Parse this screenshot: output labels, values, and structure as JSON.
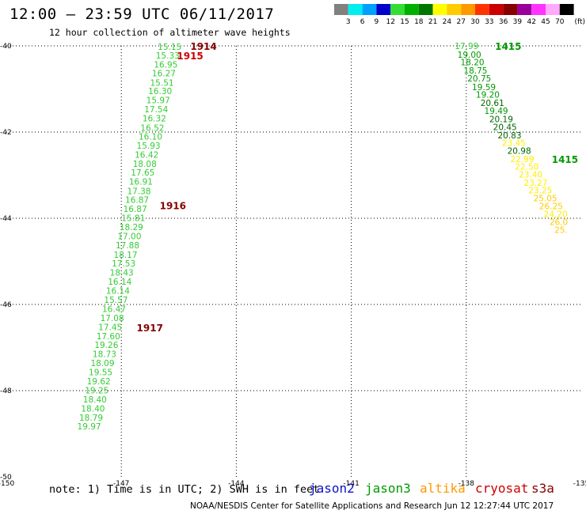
{
  "header": {
    "title": "12:00 – 23:59 UTC 06/11/2017",
    "subtitle": "12 hour collection of altimeter wave heights"
  },
  "colorbar": {
    "unit": "(ft)",
    "steps": [
      {
        "label": "3",
        "color": "#808080"
      },
      {
        "label": "6",
        "color": "#00eeee"
      },
      {
        "label": "9",
        "color": "#00a0ff"
      },
      {
        "label": "12",
        "color": "#0000cc"
      },
      {
        "label": "15",
        "color": "#33dd33"
      },
      {
        "label": "18",
        "color": "#00b000"
      },
      {
        "label": "21",
        "color": "#007700"
      },
      {
        "label": "24",
        "color": "#ffff00"
      },
      {
        "label": "27",
        "color": "#ffcc00"
      },
      {
        "label": "30",
        "color": "#ff9900"
      },
      {
        "label": "33",
        "color": "#ff3300"
      },
      {
        "label": "36",
        "color": "#cc0000"
      },
      {
        "label": "39",
        "color": "#880000"
      },
      {
        "label": "42",
        "color": "#990099"
      },
      {
        "label": "45",
        "color": "#ff33ff"
      },
      {
        "label": "70",
        "color": "#ffaaff"
      },
      {
        "label": "",
        "color": "#000000"
      }
    ]
  },
  "map": {
    "lon_range": [
      -150,
      -135
    ],
    "lat_range": [
      -50,
      -40
    ],
    "lon_ticks": [
      "-150",
      "-147",
      "-144",
      "-141",
      "-138",
      "-135"
    ],
    "lat_ticks": [
      "-40",
      "-42",
      "-44",
      "-46",
      "-48",
      "-50"
    ],
    "grid": "dotted"
  },
  "tracks": [
    {
      "name": "western-track",
      "points": [
        {
          "lat": -40.02,
          "lon": -146.05,
          "value": "15.15",
          "color": "#33cc33"
        },
        {
          "lat": -40.22,
          "lon": -146.1,
          "value": "15.33",
          "color": "#33cc33"
        },
        {
          "lat": -40.43,
          "lon": -146.15,
          "value": "16.95",
          "color": "#33cc33"
        },
        {
          "lat": -40.63,
          "lon": -146.2,
          "value": "16.27",
          "color": "#33cc33"
        },
        {
          "lat": -40.85,
          "lon": -146.25,
          "value": "15.51",
          "color": "#33cc33"
        },
        {
          "lat": -41.05,
          "lon": -146.3,
          "value": "16.30",
          "color": "#33cc33"
        },
        {
          "lat": -41.26,
          "lon": -146.35,
          "value": "15.97",
          "color": "#33cc33"
        },
        {
          "lat": -41.47,
          "lon": -146.4,
          "value": "17.54",
          "color": "#33cc33"
        },
        {
          "lat": -41.68,
          "lon": -146.45,
          "value": "16.32",
          "color": "#33cc33"
        },
        {
          "lat": -41.9,
          "lon": -146.5,
          "value": "16.52",
          "color": "#33cc33"
        },
        {
          "lat": -42.1,
          "lon": -146.55,
          "value": "16.10",
          "color": "#33cc33"
        },
        {
          "lat": -42.31,
          "lon": -146.6,
          "value": "15.93",
          "color": "#33cc33"
        },
        {
          "lat": -42.52,
          "lon": -146.65,
          "value": "16.42",
          "color": "#33cc33"
        },
        {
          "lat": -42.73,
          "lon": -146.7,
          "value": "18.08",
          "color": "#33cc33"
        },
        {
          "lat": -42.94,
          "lon": -146.75,
          "value": "17.65",
          "color": "#33cc33"
        },
        {
          "lat": -43.15,
          "lon": -146.8,
          "value": "16.91",
          "color": "#33cc33"
        },
        {
          "lat": -43.37,
          "lon": -146.85,
          "value": "17.38",
          "color": "#33cc33"
        },
        {
          "lat": -43.57,
          "lon": -146.9,
          "value": "16.87",
          "color": "#33cc33"
        },
        {
          "lat": -43.78,
          "lon": -146.95,
          "value": "16.87",
          "color": "#33cc33"
        },
        {
          "lat": -43.99,
          "lon": -147.0,
          "value": "15.81",
          "color": "#33cc33"
        },
        {
          "lat": -44.2,
          "lon": -147.05,
          "value": "18.29",
          "color": "#33cc33"
        },
        {
          "lat": -44.41,
          "lon": -147.1,
          "value": "17.00",
          "color": "#33cc33"
        },
        {
          "lat": -44.62,
          "lon": -147.15,
          "value": "17.88",
          "color": "#33cc33"
        },
        {
          "lat": -44.84,
          "lon": -147.2,
          "value": "18.17",
          "color": "#33cc33"
        },
        {
          "lat": -45.05,
          "lon": -147.25,
          "value": "17.53",
          "color": "#33cc33"
        },
        {
          "lat": -45.26,
          "lon": -147.3,
          "value": "18.43",
          "color": "#33cc33"
        },
        {
          "lat": -45.47,
          "lon": -147.35,
          "value": "16.14",
          "color": "#33cc33"
        },
        {
          "lat": -45.68,
          "lon": -147.4,
          "value": "16.14",
          "color": "#33cc33"
        },
        {
          "lat": -45.89,
          "lon": -147.45,
          "value": "15.57",
          "color": "#33cc33"
        },
        {
          "lat": -46.1,
          "lon": -147.5,
          "value": "16.47",
          "color": "#33cc33"
        },
        {
          "lat": -46.31,
          "lon": -147.55,
          "value": "17.08",
          "color": "#33cc33"
        },
        {
          "lat": -46.52,
          "lon": -147.6,
          "value": "17.45",
          "color": "#33cc33"
        },
        {
          "lat": -46.73,
          "lon": -147.65,
          "value": "17.60",
          "color": "#33cc33"
        },
        {
          "lat": -46.94,
          "lon": -147.7,
          "value": "19.26",
          "color": "#33cc33"
        },
        {
          "lat": -47.15,
          "lon": -147.75,
          "value": "18.73",
          "color": "#33cc33"
        },
        {
          "lat": -47.36,
          "lon": -147.8,
          "value": "18.09",
          "color": "#33cc33"
        },
        {
          "lat": -47.57,
          "lon": -147.85,
          "value": "19.55",
          "color": "#33cc33"
        },
        {
          "lat": -47.78,
          "lon": -147.9,
          "value": "19.62",
          "color": "#33cc33"
        },
        {
          "lat": -47.99,
          "lon": -147.95,
          "value": "19.25",
          "color": "#33cc33"
        },
        {
          "lat": -48.2,
          "lon": -148.0,
          "value": "18.40",
          "color": "#33cc33"
        },
        {
          "lat": -48.41,
          "lon": -148.05,
          "value": "18.40",
          "color": "#33cc33"
        },
        {
          "lat": -48.62,
          "lon": -148.1,
          "value": "18.79",
          "color": "#33cc33"
        },
        {
          "lat": -48.83,
          "lon": -148.15,
          "value": "19.97",
          "color": "#33cc33"
        }
      ],
      "times": [
        {
          "lat": -40.0,
          "lon": -145.2,
          "label": "1914",
          "color": "#880000"
        },
        {
          "lat": -40.22,
          "lon": -145.55,
          "label": "1915",
          "color": "#cc0000"
        },
        {
          "lat": -43.7,
          "lon": -146.0,
          "label": "1916",
          "color": "#880000"
        },
        {
          "lat": -46.53,
          "lon": -146.6,
          "label": "1917",
          "color": "#880000"
        }
      ]
    },
    {
      "name": "eastern-track",
      "points": [
        {
          "lat": -40.0,
          "lon": -138.3,
          "value": "17.99",
          "color": "#33cc33"
        },
        {
          "lat": -40.2,
          "lon": -138.23,
          "value": "19.00",
          "color": "#009900"
        },
        {
          "lat": -40.38,
          "lon": -138.15,
          "value": "18.20",
          "color": "#009900"
        },
        {
          "lat": -40.57,
          "lon": -138.07,
          "value": "18.75",
          "color": "#009900"
        },
        {
          "lat": -40.75,
          "lon": -137.97,
          "value": "20.75",
          "color": "#009900"
        },
        {
          "lat": -40.95,
          "lon": -137.85,
          "value": "19.59",
          "color": "#009900"
        },
        {
          "lat": -41.13,
          "lon": -137.75,
          "value": "19.20",
          "color": "#009900"
        },
        {
          "lat": -41.32,
          "lon": -137.63,
          "value": "20.61",
          "color": "#006600"
        },
        {
          "lat": -41.5,
          "lon": -137.53,
          "value": "19.49",
          "color": "#009900"
        },
        {
          "lat": -41.7,
          "lon": -137.4,
          "value": "20.19",
          "color": "#006600"
        },
        {
          "lat": -41.88,
          "lon": -137.3,
          "value": "20.45",
          "color": "#006600"
        },
        {
          "lat": -42.07,
          "lon": -137.18,
          "value": "20.83",
          "color": "#006600"
        },
        {
          "lat": -42.25,
          "lon": -137.07,
          "value": "23.45",
          "color": "#ffee00"
        },
        {
          "lat": -42.43,
          "lon": -136.93,
          "value": "20.98",
          "color": "#006600"
        },
        {
          "lat": -42.62,
          "lon": -136.85,
          "value": "22.99",
          "color": "#ffee00"
        },
        {
          "lat": -42.8,
          "lon": -136.73,
          "value": "22.50",
          "color": "#ffee00"
        },
        {
          "lat": -42.98,
          "lon": -136.63,
          "value": "23.40",
          "color": "#ffee00"
        },
        {
          "lat": -43.17,
          "lon": -136.5,
          "value": "23.27",
          "color": "#ffee00"
        },
        {
          "lat": -43.35,
          "lon": -136.38,
          "value": "23.25",
          "color": "#ffee00"
        },
        {
          "lat": -43.53,
          "lon": -136.25,
          "value": "25.05",
          "color": "#ffcc00"
        },
        {
          "lat": -43.72,
          "lon": -136.1,
          "value": "26.25",
          "color": "#ffcc00"
        },
        {
          "lat": -43.9,
          "lon": -135.98,
          "value": "24.20",
          "color": "#ffee00"
        },
        {
          "lat": -44.08,
          "lon": -135.83,
          "value": "26.0",
          "color": "#ffcc00"
        },
        {
          "lat": -44.27,
          "lon": -135.7,
          "value": "25.",
          "color": "#ffcc00"
        }
      ],
      "times": [
        {
          "lat": -40.0,
          "lon": -137.25,
          "label": "1415",
          "color": "#009900"
        },
        {
          "lat": -42.62,
          "lon": -135.77,
          "label": "1415",
          "color": "#009900"
        }
      ]
    }
  ],
  "footer": {
    "note": "note: 1) Time is in UTC; 2) SWH is in feet",
    "satellites": {
      "jason2": "jason2",
      "jason3": "jason3",
      "altika": "altika",
      "cryosat": "cryosat",
      "s3a": "s3a"
    },
    "credit": "NOAA/NESDIS Center for Satellite Applications and Research    Jun 12 12:27:44 UTC 2017"
  }
}
